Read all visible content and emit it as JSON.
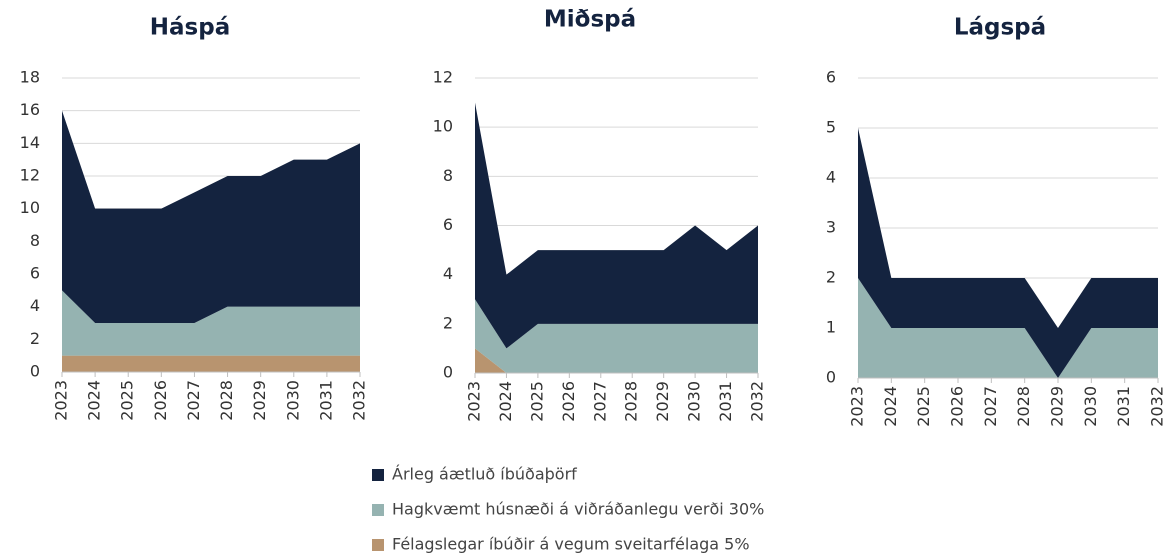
{
  "chart_data": [
    {
      "type": "area",
      "stacked": true,
      "title": "Háspá",
      "categories": [
        "2023",
        "2024",
        "2025",
        "2026",
        "2027",
        "2028",
        "2029",
        "2030",
        "2031",
        "2032"
      ],
      "ylim": [
        0,
        18
      ],
      "yticks": [
        0,
        2,
        4,
        6,
        8,
        10,
        12,
        14,
        16,
        18
      ],
      "grid": true,
      "series": [
        {
          "name": "Félagslegar íbúðir á vegum sveitarfélaga 5%",
          "color": "#b8946f",
          "values": [
            1,
            1,
            1,
            1,
            1,
            1,
            1,
            1,
            1,
            1
          ]
        },
        {
          "name": "Hagkvæmt húsnæði á viðráðanlegu verði 30%",
          "color": "#95b3b1",
          "values": [
            4,
            2,
            2,
            2,
            2,
            3,
            3,
            3,
            3,
            3
          ]
        },
        {
          "name": "Árleg áætluð íbúðaþörf",
          "color": "#14233f",
          "values": [
            11,
            7,
            7,
            7,
            8,
            8,
            8,
            9,
            9,
            10
          ]
        }
      ]
    },
    {
      "type": "area",
      "stacked": true,
      "title": "Miðspá",
      "categories": [
        "2023",
        "2024",
        "2025",
        "2026",
        "2027",
        "2028",
        "2029",
        "2030",
        "2031",
        "2032"
      ],
      "ylim": [
        0,
        12
      ],
      "yticks": [
        0,
        2,
        4,
        6,
        8,
        10,
        12
      ],
      "grid": true,
      "series": [
        {
          "color": "#b8946f",
          "values": [
            1,
            0,
            0,
            0,
            0,
            0,
            0,
            0,
            0,
            0
          ]
        },
        {
          "color": "#95b3b1",
          "values": [
            2,
            1,
            2,
            2,
            2,
            2,
            2,
            2,
            2,
            2
          ]
        },
        {
          "color": "#14233f",
          "values": [
            8,
            3,
            3,
            3,
            3,
            3,
            3,
            4,
            3,
            4
          ]
        }
      ]
    },
    {
      "type": "area",
      "stacked": true,
      "title": "Lágspá",
      "categories": [
        "2023",
        "2024",
        "2025",
        "2026",
        "2027",
        "2028",
        "2029",
        "2030",
        "2031",
        "2032"
      ],
      "ylim": [
        0,
        6
      ],
      "yticks": [
        0,
        1,
        2,
        3,
        4,
        5,
        6
      ],
      "grid": true,
      "series": [
        {
          "color": "#b8946f",
          "values": [
            0,
            0,
            0,
            0,
            0,
            0,
            0,
            0,
            0,
            0
          ]
        },
        {
          "color": "#95b3b1",
          "values": [
            2,
            1,
            1,
            1,
            1,
            1,
            0,
            1,
            1,
            1
          ]
        },
        {
          "color": "#14233f",
          "values": [
            3,
            1,
            1,
            1,
            1,
            1,
            1,
            1,
            1,
            1
          ]
        }
      ]
    }
  ]
}
